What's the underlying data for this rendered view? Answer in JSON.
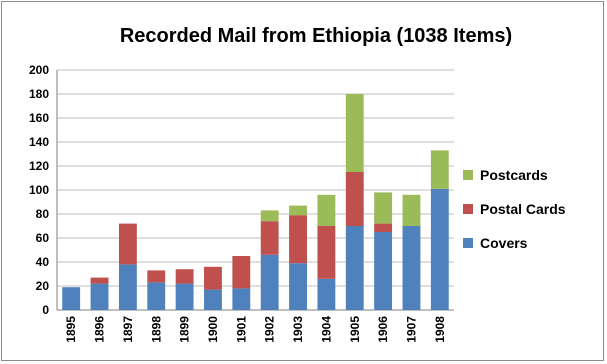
{
  "chart_data": {
    "type": "bar",
    "stacked": true,
    "title": "Recorded Mail from Ethiopia (1038 Items)",
    "xlabel": "",
    "ylabel": "",
    "categories": [
      "1895",
      "1896",
      "1897",
      "1898",
      "1899",
      "1900",
      "1901",
      "1902",
      "1903",
      "1904",
      "1905",
      "1906",
      "1907",
      "1908"
    ],
    "ylim": [
      0,
      200
    ],
    "yticks": [
      0,
      20,
      40,
      60,
      80,
      100,
      120,
      140,
      160,
      180,
      200
    ],
    "grid": "horizontal",
    "legend_position": "right",
    "series": [
      {
        "name": "Covers",
        "color": "#4f81bd",
        "values": [
          19,
          22,
          38,
          23,
          22,
          17,
          18,
          46,
          39,
          26,
          70,
          65,
          70,
          101
        ]
      },
      {
        "name": "Postal Cards",
        "color": "#c0504d",
        "values": [
          0,
          5,
          34,
          10,
          12,
          19,
          27,
          28,
          40,
          44,
          45,
          7,
          0,
          0
        ]
      },
      {
        "name": "Postcards",
        "color": "#9bbb59",
        "values": [
          0,
          0,
          0,
          0,
          0,
          0,
          0,
          9,
          8,
          26,
          65,
          26,
          26,
          32
        ]
      }
    ],
    "legend_order": [
      "Postcards",
      "Postal Cards",
      "Covers"
    ]
  }
}
